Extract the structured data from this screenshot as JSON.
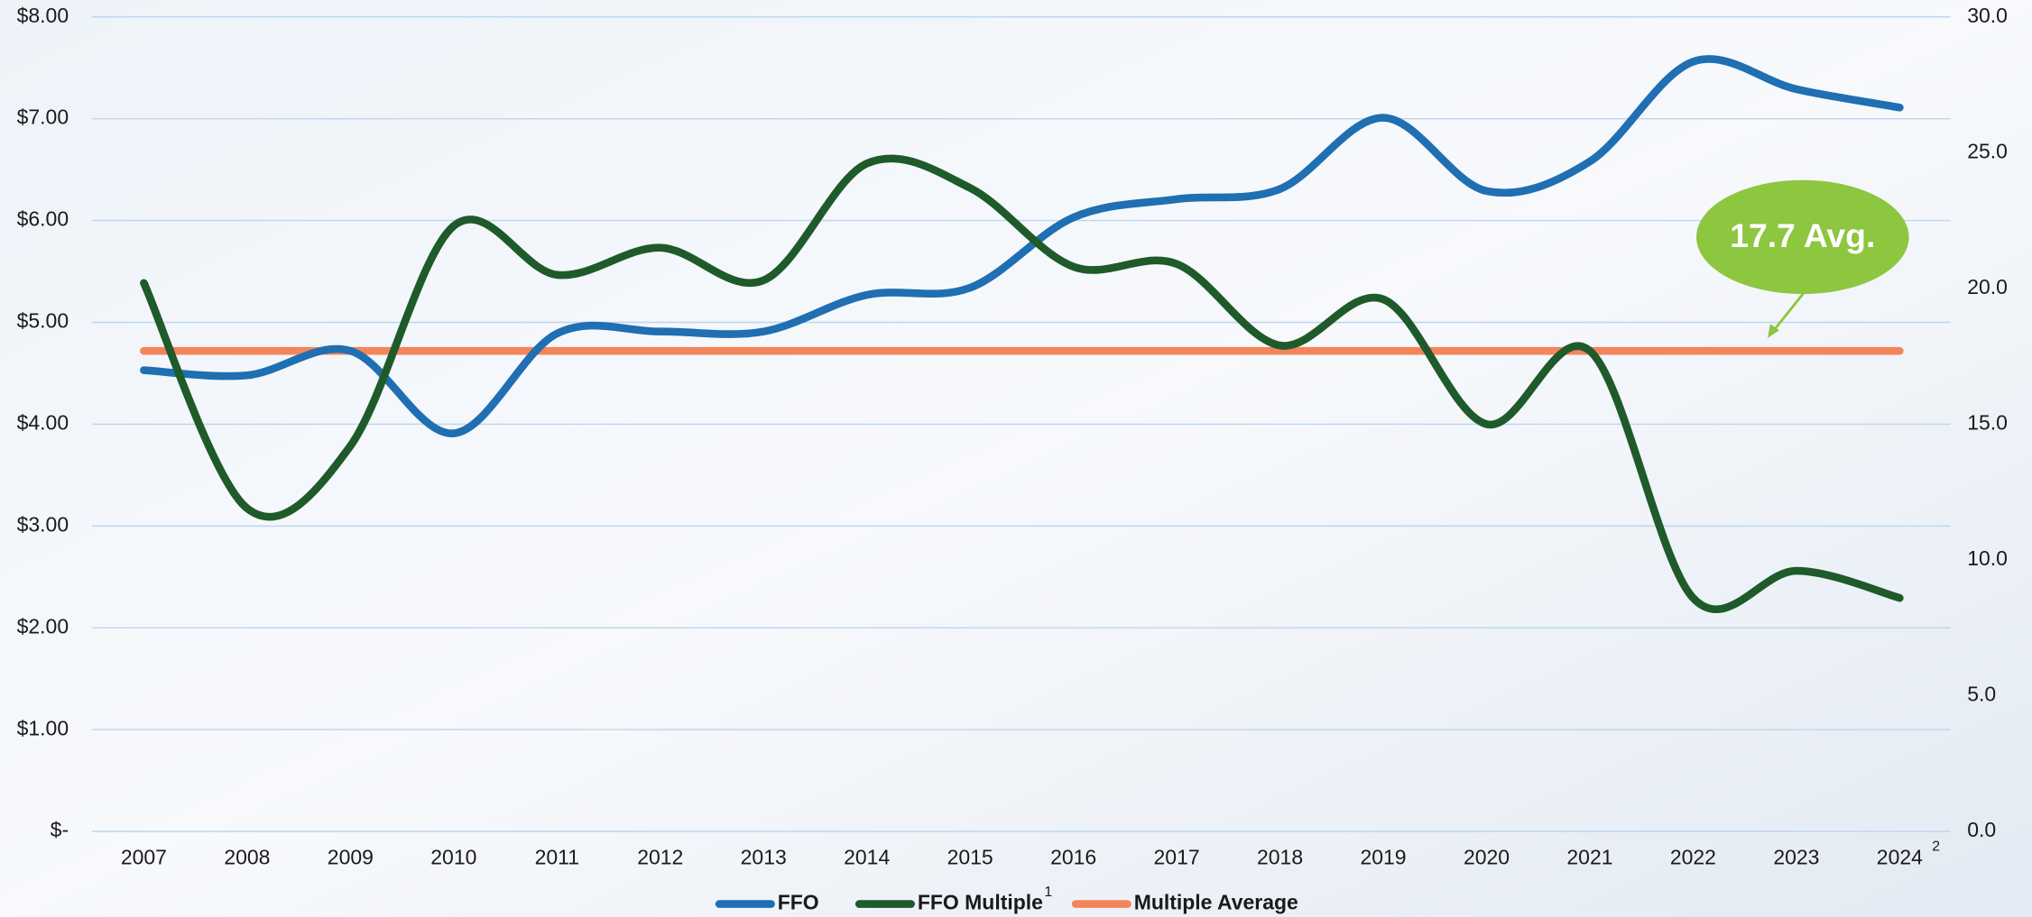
{
  "chart_data": {
    "type": "line",
    "categories": [
      "2007",
      "2008",
      "2009",
      "2010",
      "2011",
      "2012",
      "2013",
      "2014",
      "2015",
      "2016",
      "2017",
      "2018",
      "2019",
      "2020",
      "2021",
      "2022",
      "2023",
      "2024"
    ],
    "x_footnote": "2",
    "series": [
      {
        "name": "FFO",
        "color": "#1f6fb2",
        "axis": "y",
        "values": [
          4.53,
          4.48,
          4.72,
          3.91,
          4.89,
          4.91,
          4.91,
          5.27,
          5.34,
          6.03,
          6.21,
          6.31,
          7.01,
          6.29,
          6.58,
          7.56,
          7.29,
          7.11
        ]
      },
      {
        "name": "FFO Multiple",
        "footnote": "1",
        "color": "#1f5a2a",
        "axis": "y2",
        "values": [
          20.2,
          11.9,
          14.2,
          22.3,
          20.5,
          21.5,
          20.3,
          24.6,
          23.7,
          20.8,
          20.9,
          17.9,
          19.6,
          15.0,
          17.7,
          8.6,
          9.6,
          8.6
        ]
      },
      {
        "name": "Multiple Average",
        "color": "#f4845a",
        "axis": "y2",
        "values": [
          17.7,
          17.7,
          17.7,
          17.7,
          17.7,
          17.7,
          17.7,
          17.7,
          17.7,
          17.7,
          17.7,
          17.7,
          17.7,
          17.7,
          17.7,
          17.7,
          17.7,
          17.7
        ]
      }
    ],
    "annotation": {
      "text": "17.7 Avg.",
      "color": "#8dc63f"
    },
    "ylim": [
      0,
      8
    ],
    "yticks": [
      {
        "value": 0,
        "label": "$-"
      },
      {
        "value": 1,
        "label": "$1.00"
      },
      {
        "value": 2,
        "label": "$2.00"
      },
      {
        "value": 3,
        "label": "$3.00"
      },
      {
        "value": 4,
        "label": "$4.00"
      },
      {
        "value": 5,
        "label": "$5.00"
      },
      {
        "value": 6,
        "label": "$6.00"
      },
      {
        "value": 7,
        "label": "$7.00"
      },
      {
        "value": 8,
        "label": "$8.00"
      }
    ],
    "y2lim": [
      0,
      30
    ],
    "y2ticks": [
      {
        "value": 0,
        "label": "0.0"
      },
      {
        "value": 5,
        "label": "5.0"
      },
      {
        "value": 10,
        "label": "10.0"
      },
      {
        "value": 15,
        "label": "15.0"
      },
      {
        "value": 20,
        "label": "20.0"
      },
      {
        "value": 25,
        "label": "25.0"
      },
      {
        "value": 30,
        "label": "30.0"
      }
    ],
    "grid": true,
    "legend": "bottom"
  }
}
